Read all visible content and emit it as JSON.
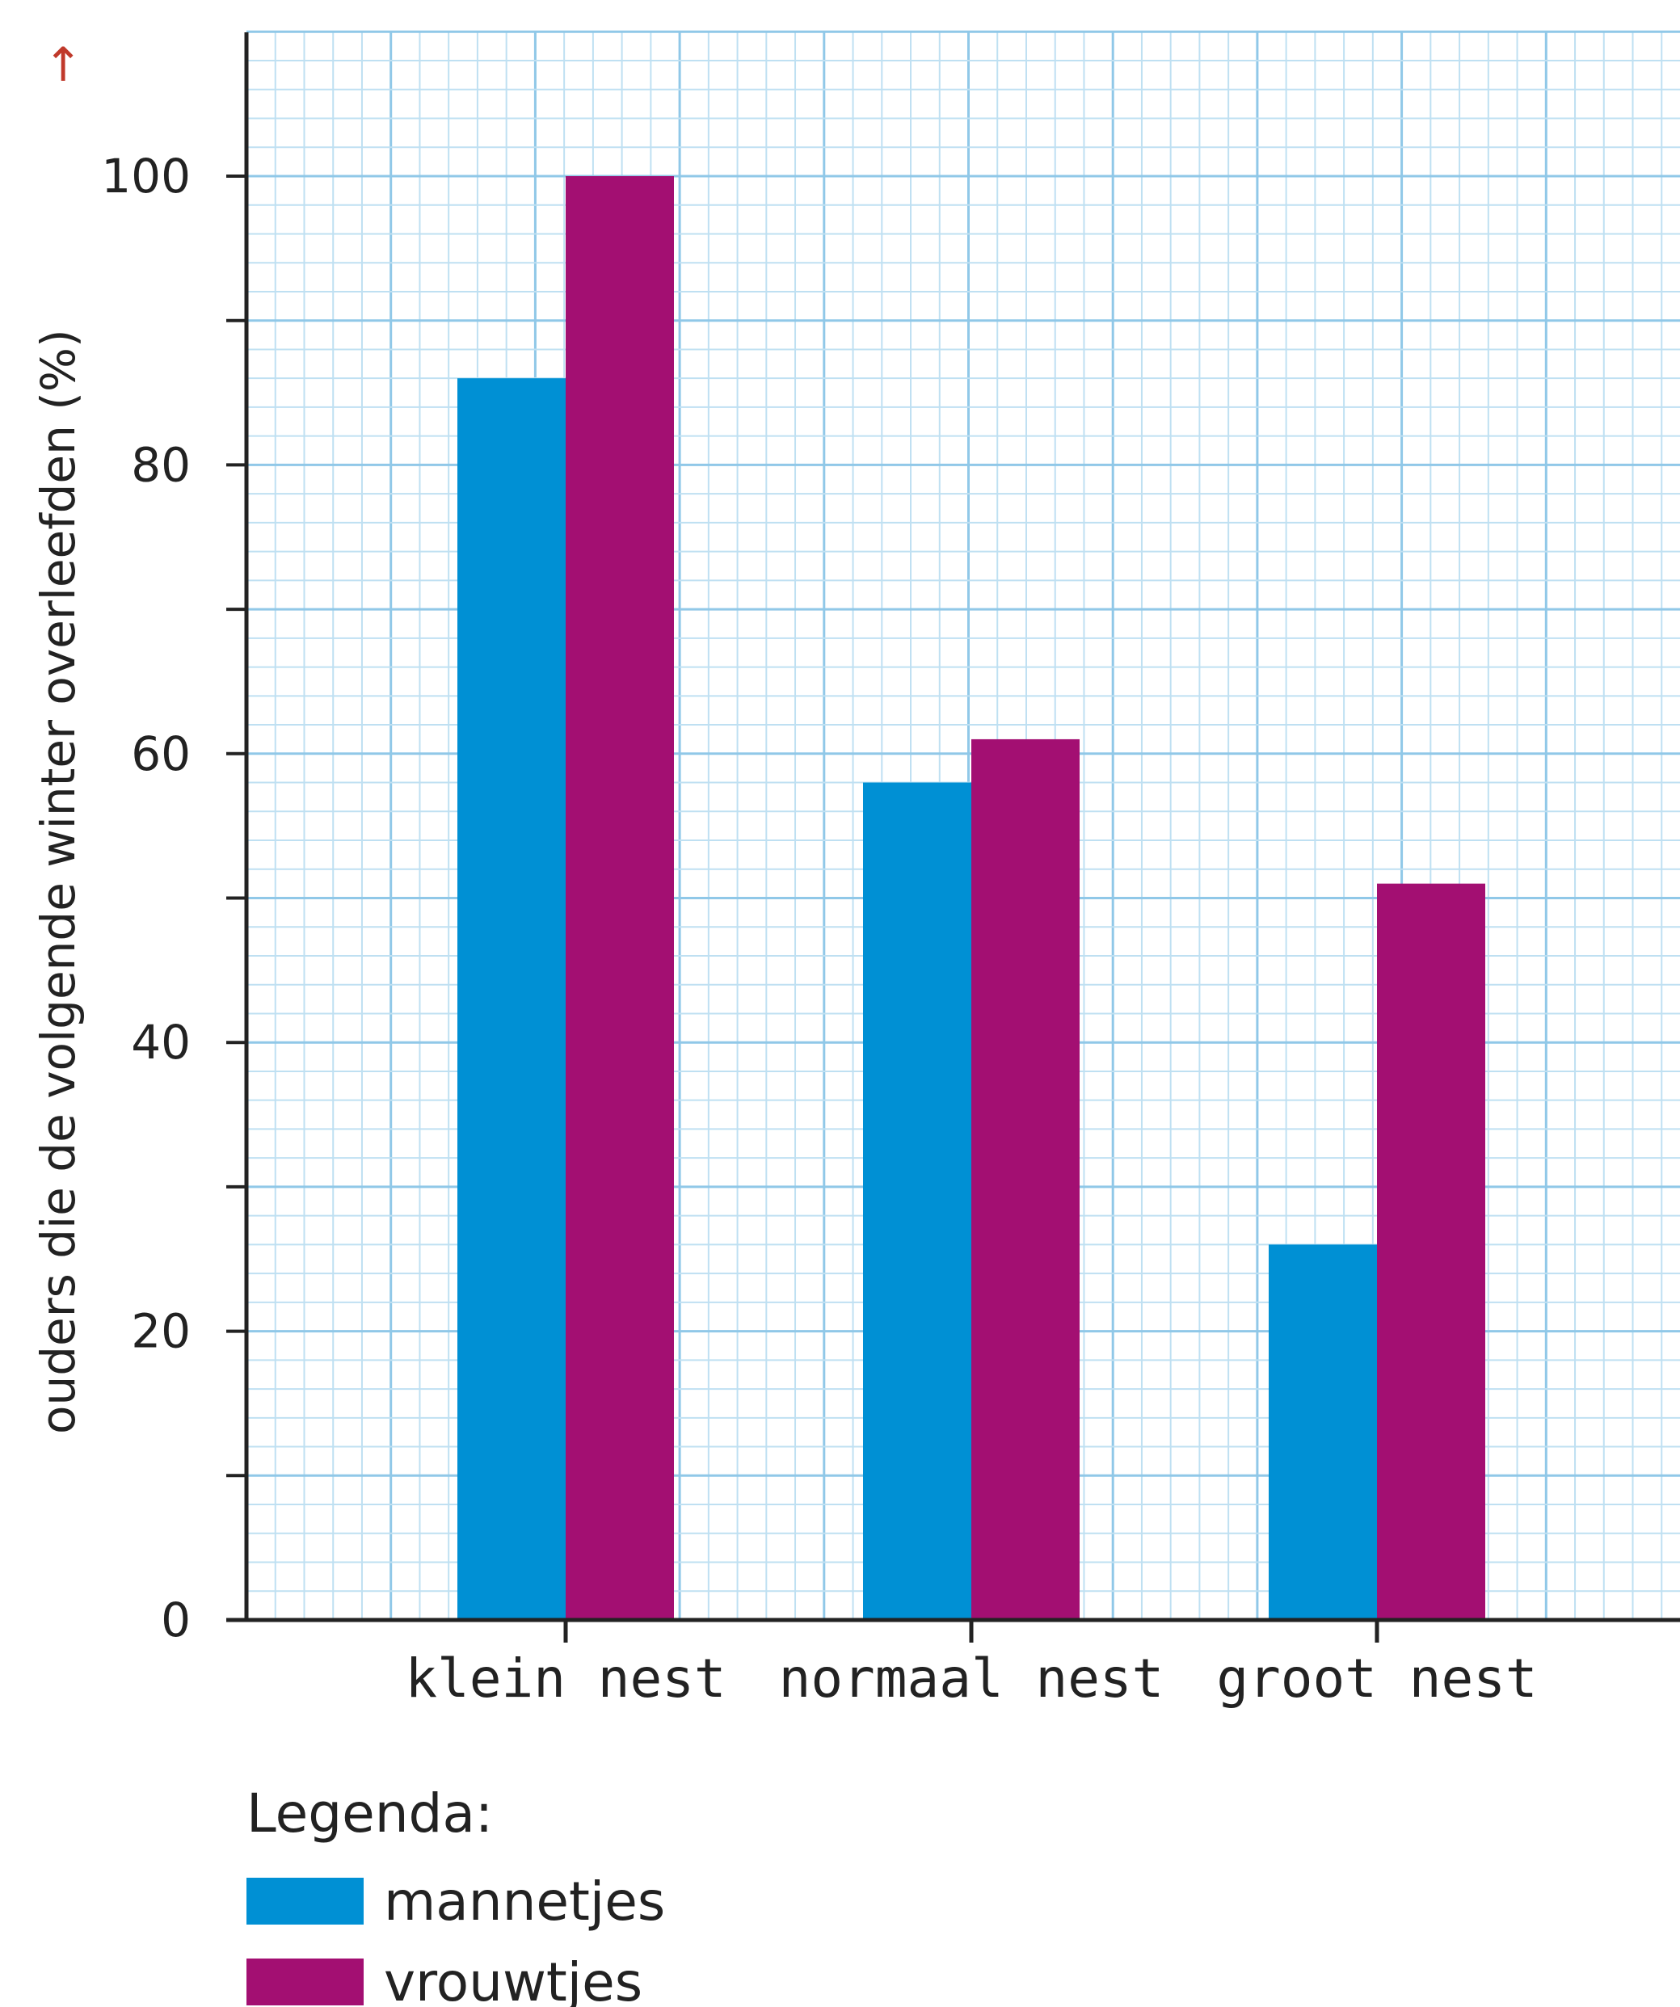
{
  "chart_data": {
    "type": "bar",
    "categories": [
      "klein nest",
      "normaal nest",
      "groot nest"
    ],
    "series": [
      {
        "name": "mannetjes",
        "values": [
          86,
          58,
          26
        ],
        "color": "#0090d4"
      },
      {
        "name": "vrouwtjes",
        "values": [
          100,
          61,
          51
        ],
        "color": "#a30f72"
      }
    ],
    "ylabel": "ouders die de volgende winter overleefden (%)",
    "ylabel_arrow": "↑",
    "yticks": [
      "0",
      "20",
      "40",
      "60",
      "80",
      "100"
    ],
    "ylim": [
      0,
      110
    ],
    "grid": true,
    "legend": {
      "title": "Legenda:",
      "placement": "bottom-left"
    },
    "colors": {
      "grid_minor": "#bfe0f2",
      "grid_major": "#90c8e8",
      "axis": "#222222",
      "arrow": "#c0392b"
    }
  }
}
